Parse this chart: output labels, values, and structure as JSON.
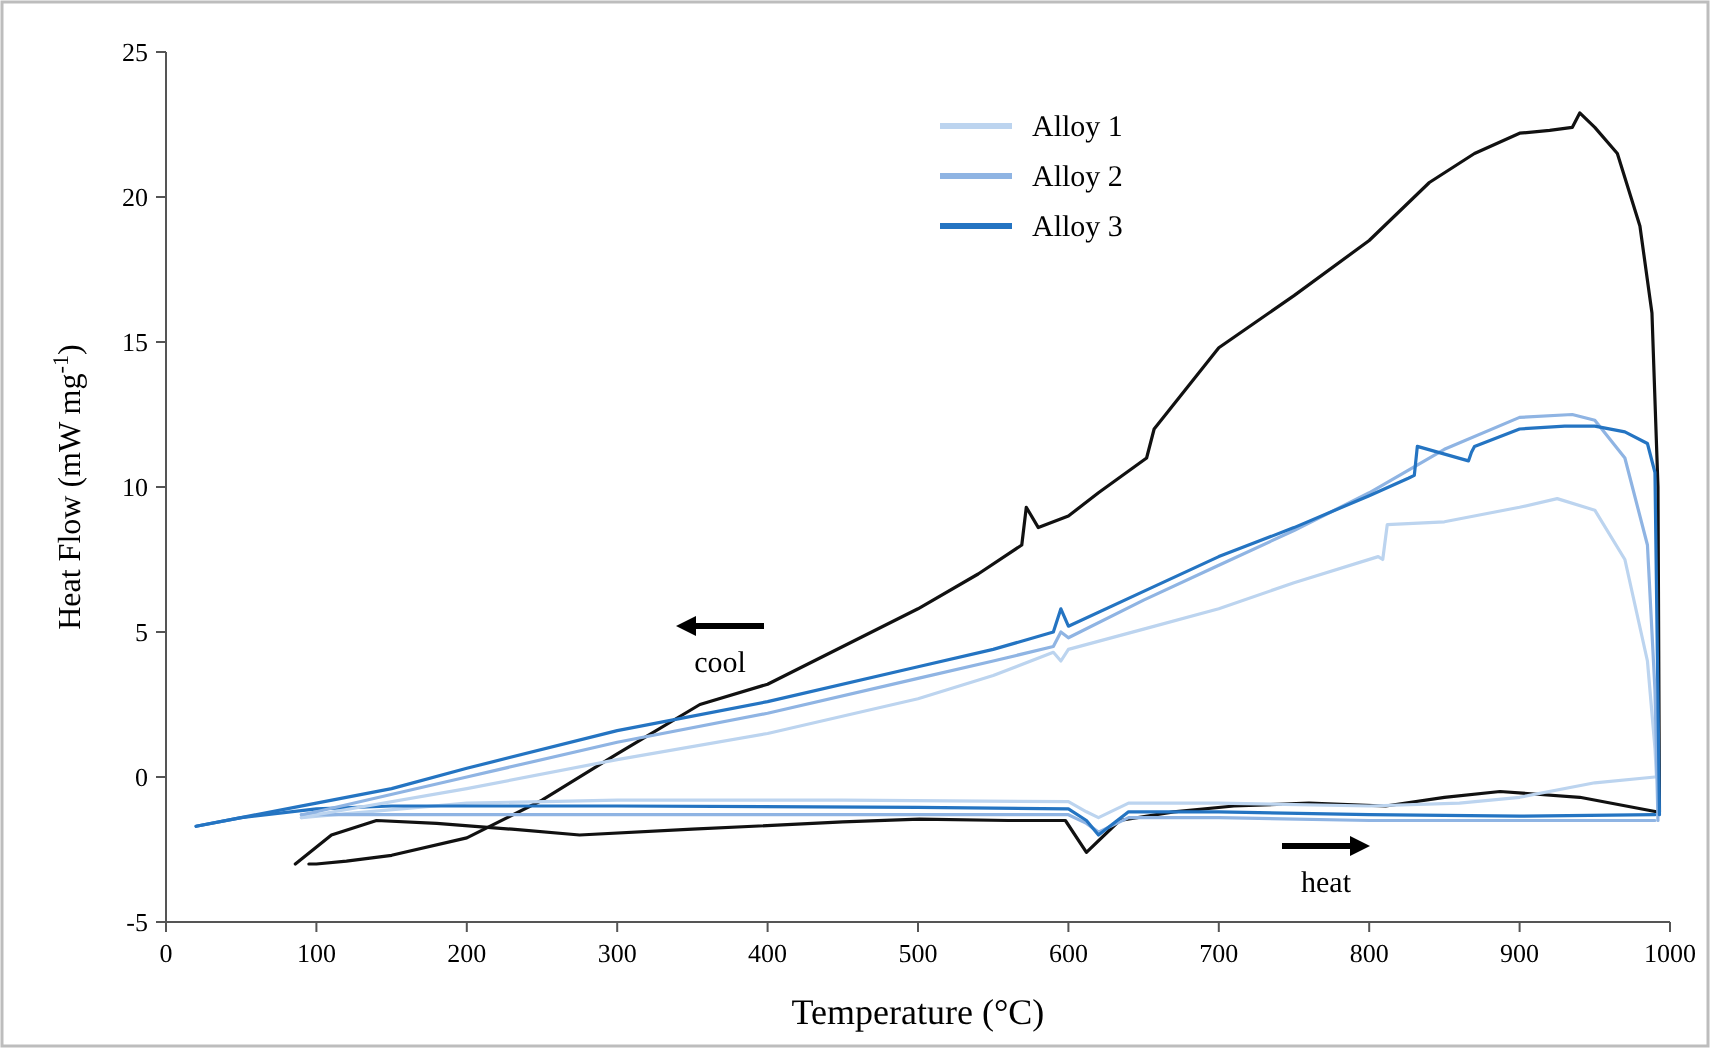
{
  "chart_data": {
    "type": "line",
    "xlabel": "Temperature (°C)",
    "ylabel": "Heat Flow (mW mg$^{-1}$)",
    "xlim": [
      0,
      1000
    ],
    "xticks": [
      0,
      100,
      200,
      300,
      400,
      500,
      600,
      700,
      800,
      900,
      1000
    ],
    "ylim": [
      -5,
      25
    ],
    "yticks": [
      -5,
      0,
      5,
      10,
      15,
      20,
      25
    ],
    "grid": false,
    "legend": "top right",
    "marker": "none",
    "line_style": "solid",
    "series": [
      {
        "color": "#111111",
        "x": [
          86,
          110,
          140,
          180,
          230,
          275,
          350,
          450,
          501,
          560,
          598,
          612,
          634,
          670,
          710,
          760,
          811,
          850,
          887,
          940,
          991
        ],
        "values": [
          -3.0,
          -2.0,
          -1.5,
          -1.6,
          -1.8,
          -2.0,
          -1.8,
          -1.55,
          -1.45,
          -1.5,
          -1.5,
          -2.6,
          -1.5,
          -1.2,
          -1.0,
          -0.9,
          -1.0,
          -0.7,
          -0.5,
          -0.7,
          -1.2
        ]
      },
      {
        "color": "#111111",
        "x": [
          95,
          100,
          120,
          150,
          200,
          250,
          300,
          355,
          400,
          450,
          500,
          540,
          569,
          572,
          580,
          600,
          620,
          652,
          657,
          700,
          750,
          800,
          840,
          870,
          900,
          920,
          935,
          940,
          950,
          965,
          980,
          988,
          992,
          993
        ],
        "values": [
          -3.0,
          -3.0,
          -2.9,
          -2.7,
          -2.1,
          -0.8,
          0.8,
          2.5,
          3.2,
          4.5,
          5.8,
          7.0,
          8.0,
          9.3,
          8.6,
          9.0,
          9.8,
          11.0,
          12.0,
          14.8,
          16.6,
          18.5,
          20.5,
          21.5,
          22.2,
          22.3,
          22.4,
          22.9,
          22.4,
          21.5,
          19.0,
          16.0,
          10.0,
          -1.2
        ]
      },
      {
        "color": "#bcd4ef",
        "x": [
          90,
          200,
          300,
          450,
          600,
          612,
          620,
          640,
          700,
          800,
          860,
          900,
          950,
          990
        ],
        "values": [
          -1.4,
          -0.9,
          -0.8,
          -0.8,
          -0.85,
          -1.2,
          -1.4,
          -0.9,
          -0.9,
          -1.0,
          -0.9,
          -0.7,
          -0.2,
          0.0
        ]
      },
      {
        "color": "#8fb4e3",
        "x": [
          90,
          200,
          350,
          500,
          600,
          612,
          620,
          640,
          700,
          800,
          900,
          990
        ],
        "values": [
          -1.3,
          -1.3,
          -1.3,
          -1.3,
          -1.3,
          -1.6,
          -1.9,
          -1.4,
          -1.4,
          -1.5,
          -1.5,
          -1.5
        ]
      },
      {
        "color": "#2474c2",
        "x": [
          20,
          50,
          100,
          150,
          300,
          500,
          600,
          612,
          620,
          640,
          700,
          800,
          900,
          990
        ],
        "values": [
          -1.7,
          -1.4,
          -1.1,
          -1.0,
          -1.0,
          -1.05,
          -1.1,
          -1.5,
          -2.0,
          -1.2,
          -1.2,
          -1.3,
          -1.35,
          -1.3
        ]
      },
      {
        "name": "Alloy 1",
        "color": "#bcd4ef",
        "x": [
          90,
          100,
          200,
          300,
          400,
          500,
          550,
          590,
          595,
          600,
          650,
          700,
          750,
          806,
          809,
          812,
          850,
          900,
          925,
          950,
          970,
          985,
          990,
          991
        ],
        "values": [
          -1.4,
          -1.3,
          -0.4,
          0.6,
          1.5,
          2.7,
          3.5,
          4.3,
          4.0,
          4.4,
          5.1,
          5.8,
          6.7,
          7.6,
          7.5,
          8.7,
          8.8,
          9.3,
          9.6,
          9.2,
          7.5,
          4,
          1,
          0.0
        ]
      },
      {
        "name": "Alloy 2",
        "color": "#8fb4e3",
        "x": [
          90,
          100,
          200,
          300,
          400,
          500,
          550,
          590,
          595,
          600,
          650,
          700,
          750,
          800,
          850,
          900,
          935,
          950,
          970,
          985,
          990,
          992
        ],
        "values": [
          -1.3,
          -1.2,
          0.0,
          1.2,
          2.2,
          3.4,
          4.0,
          4.5,
          5.0,
          4.8,
          6.1,
          7.3,
          8.5,
          9.8,
          11.3,
          12.4,
          12.5,
          12.3,
          11,
          8,
          3,
          -1.5
        ]
      },
      {
        "name": "Alloy 3",
        "color": "#2474c2",
        "x": [
          20,
          50,
          100,
          150,
          200,
          300,
          400,
          500,
          550,
          590,
          595,
          600,
          650,
          700,
          750,
          800,
          826,
          830,
          832,
          866,
          868,
          870,
          900,
          930,
          950,
          970,
          985,
          990,
          993
        ],
        "values": [
          -1.7,
          -1.4,
          -0.9,
          -0.4,
          0.3,
          1.6,
          2.6,
          3.8,
          4.4,
          5.0,
          5.8,
          5.2,
          6.4,
          7.6,
          8.6,
          9.7,
          10.3,
          10.4,
          11.4,
          10.9,
          11.2,
          11.4,
          12.0,
          12.1,
          12.1,
          11.9,
          11.5,
          10.5,
          -1.3
        ]
      }
    ],
    "annotations": [
      "cool",
      "heat"
    ]
  }
}
